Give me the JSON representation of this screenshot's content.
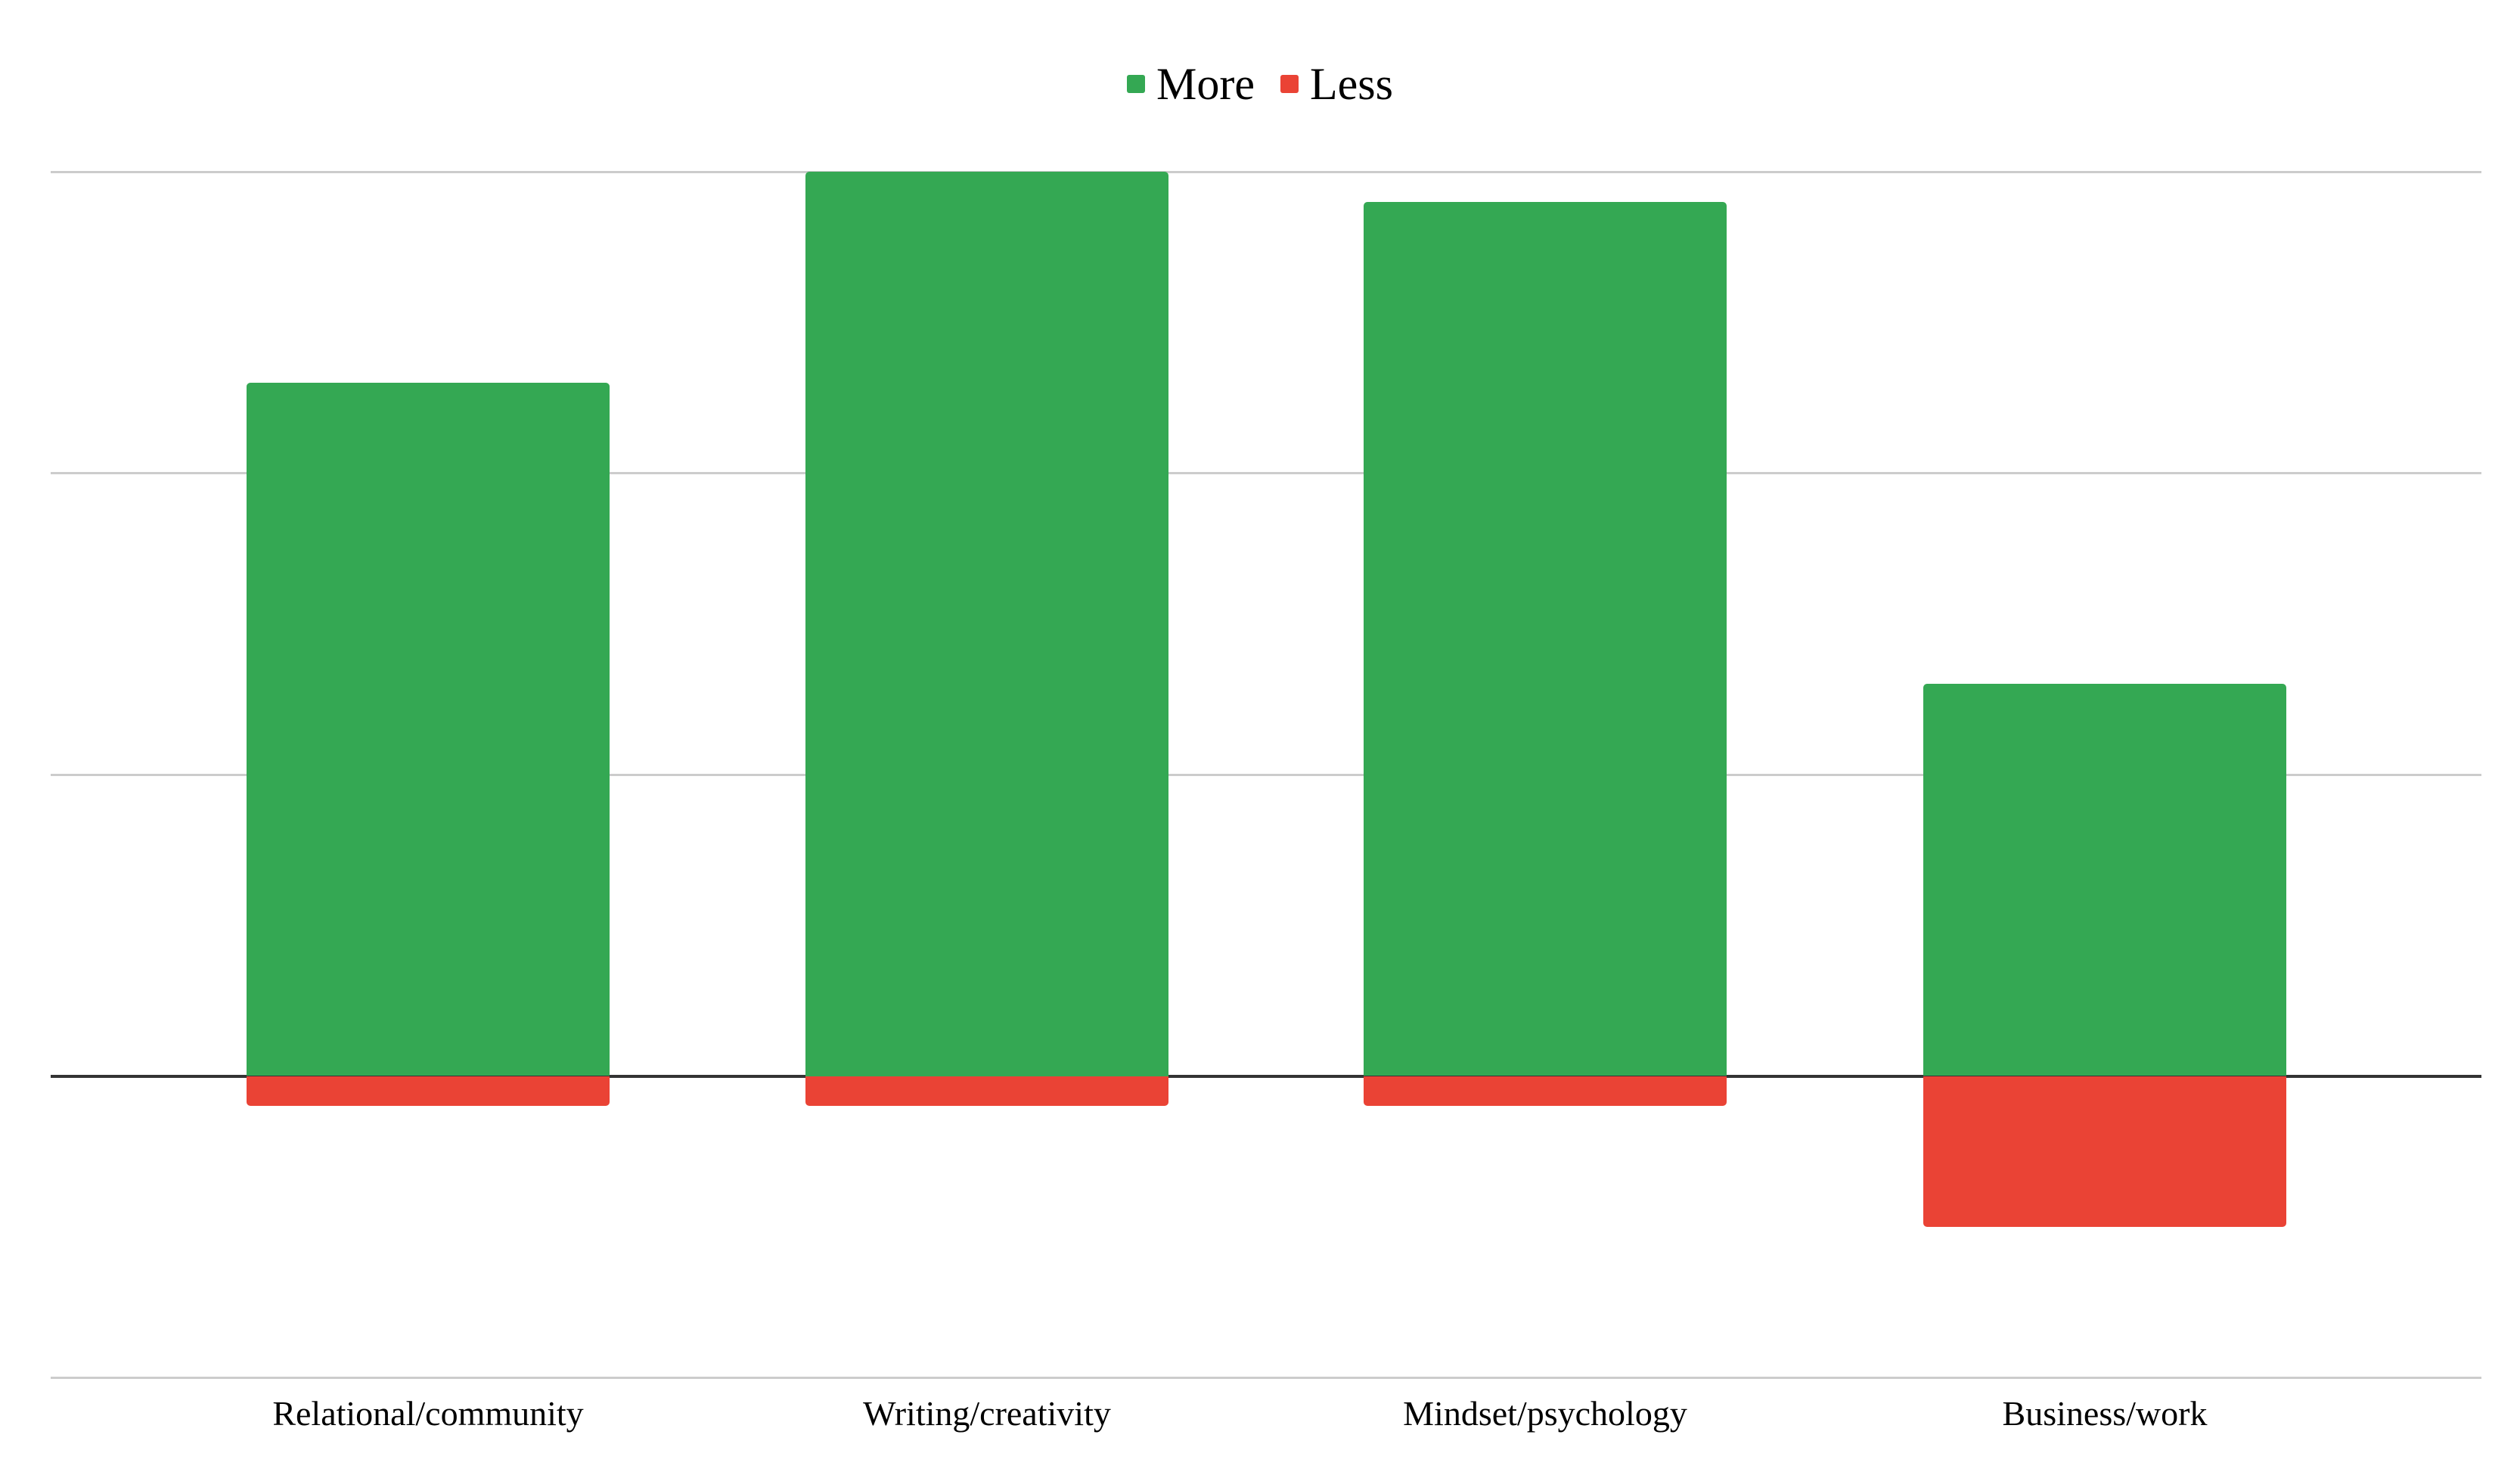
{
  "chart_data": {
    "type": "bar",
    "subtype": "diverging-stacked-column",
    "title": "",
    "xlabel": "",
    "ylabel": "",
    "categories": [
      "Relational/community",
      "Writing/creativity",
      "Mindset/psychology",
      "Business/work"
    ],
    "series": [
      {
        "name": "More",
        "color": "#34a853",
        "values": [
          23,
          30,
          29,
          13
        ]
      },
      {
        "name": "Less",
        "color": "#ea4335",
        "values": [
          -1,
          -1,
          -1,
          -5
        ]
      }
    ],
    "ylim": [
      -10,
      30
    ],
    "gridline_interval": 10,
    "y_tick_labels_visible": false,
    "grid": true,
    "legend_position": "top"
  },
  "legend": {
    "items": [
      {
        "label": "More",
        "color": "#34a853"
      },
      {
        "label": "Less",
        "color": "#ea4335"
      }
    ]
  },
  "colors": {
    "more": "#34a853",
    "less": "#ea4335",
    "gridline": "#cccccc",
    "zero_line": "#333333",
    "text": "#000000",
    "background": "#ffffff"
  }
}
